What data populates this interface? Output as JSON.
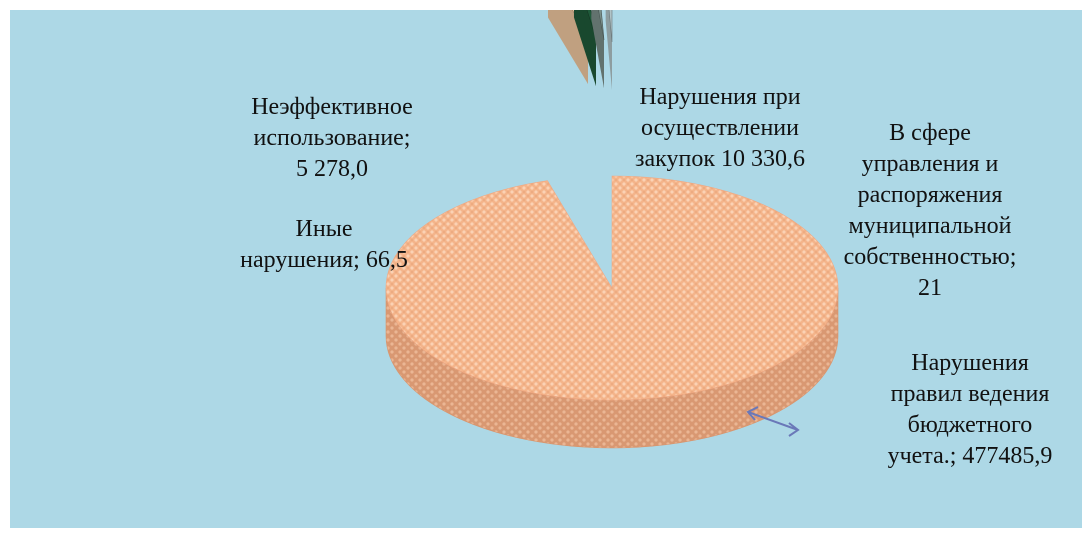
{
  "chart_data": {
    "type": "pie",
    "title": "",
    "three_d": true,
    "exploded": true,
    "legend": "none",
    "slices": [
      {
        "name": "Нарушения правил ведения бюджетного учета.",
        "value": 477485.9,
        "value_label": "477485,9",
        "label_lines": [
          "Нарушения",
          "правил ведения",
          "бюджетного",
          "учета.; 477485,9"
        ],
        "color": "#f7b98c"
      },
      {
        "name": "Нарушения при осуществлении закупок",
        "value": 10330.6,
        "value_label": "10 330,6",
        "label_lines": [
          "Нарушения при",
          "осуществлении",
          "закупок 10 330,6"
        ],
        "color": "#f0c8a0"
      },
      {
        "name": "Неэффективное использование",
        "value": 5278.0,
        "value_label": "5 278,0",
        "label_lines": [
          "Неэффективное",
          "использование;",
          "5 278,0"
        ],
        "color": "#1f5a3a"
      },
      {
        "name": "Иные нарушения",
        "value": 66.5,
        "value_label": "66,5",
        "label_lines": [
          "Иные",
          "нарушения; 66,5"
        ],
        "color": "#7a8f8a"
      },
      {
        "name": "В сфере управления и распоряжения муниципальной собственностью",
        "value": 21,
        "value_label": "21",
        "label_lines": [
          "В сфере",
          "управления и",
          "распоряжения",
          "муниципальной",
          "собственностью;",
          "21"
        ],
        "color": "#b0c4c8"
      }
    ]
  }
}
